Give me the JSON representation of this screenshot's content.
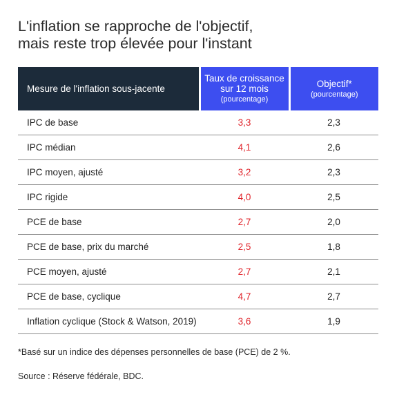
{
  "title": {
    "line1": "L'inflation se rapproche de l'objectif,",
    "line2": "mais reste trop élevée pour l'instant"
  },
  "colors": {
    "header_dark": "#1c2b3a",
    "header_accent": "#3d4ef0",
    "rate_value": "#e0242b"
  },
  "chart_data": {
    "type": "table",
    "columns": [
      {
        "label": "Mesure de l'inflation sous-jacente",
        "sublabel": ""
      },
      {
        "label": "Taux de croissance sur 12 mois",
        "sublabel": "(pourcentage)"
      },
      {
        "label": "Objectif*",
        "sublabel": "(pourcentage)"
      }
    ],
    "rows": [
      {
        "measure": "IPC de base",
        "rate": "3,3",
        "target": "2,3"
      },
      {
        "measure": "IPC médian",
        "rate": "4,1",
        "target": "2,6"
      },
      {
        "measure": "IPC moyen, ajusté",
        "rate": "3,2",
        "target": "2,3"
      },
      {
        "measure": "IPC rigide",
        "rate": "4,0",
        "target": "2,5"
      },
      {
        "measure": "PCE de base",
        "rate": "2,7",
        "target": "2,0"
      },
      {
        "measure": "PCE de base, prix du marché",
        "rate": "2,5",
        "target": "1,8"
      },
      {
        "measure": "PCE moyen, ajusté",
        "rate": "2,7",
        "target": "2,1"
      },
      {
        "measure": "PCE de base, cyclique",
        "rate": "4,7",
        "target": "2,7"
      },
      {
        "measure": "Inflation cyclique (Stock & Watson, 2019)",
        "rate": "3,6",
        "target": "1,9"
      }
    ]
  },
  "footnote": "*Basé sur un indice des dépenses personnelles de base (PCE) de 2 %.",
  "source": "Source : Réserve fédérale, BDC."
}
